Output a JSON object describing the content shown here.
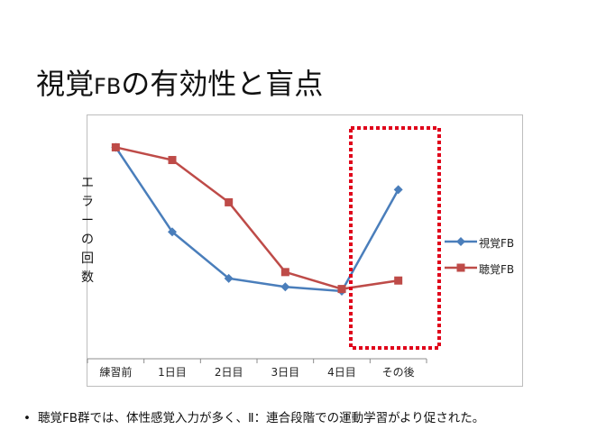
{
  "slide": {
    "title_pre": "視覚",
    "title_fb": "FB",
    "title_post": "の有効性と盲点",
    "bullet": "聴覚FB群では、体性感覚入力が多く、Ⅱ：連合段階での運動学習がより促された。"
  },
  "chart_data": {
    "type": "line",
    "categories": [
      "練習前",
      "1日目",
      "2日目",
      "3日目",
      "4日目",
      "その後"
    ],
    "ylabel_chars": [
      "エ",
      "ラ",
      "ー",
      "の",
      "回",
      "数"
    ],
    "series": [
      {
        "name": "視覚FB",
        "color": "#4a7ebb",
        "marker": "diamond",
        "values": [
          100,
          60,
          38,
          34,
          32,
          80
        ]
      },
      {
        "name": "聴覚FB",
        "color": "#be4b48",
        "marker": "square",
        "values": [
          100,
          94,
          74,
          41,
          33,
          37
        ]
      }
    ],
    "ylim": [
      0,
      110
    ],
    "grid": false,
    "legend": "right",
    "highlight_category": "その後",
    "highlight_color": "#e0001a"
  }
}
